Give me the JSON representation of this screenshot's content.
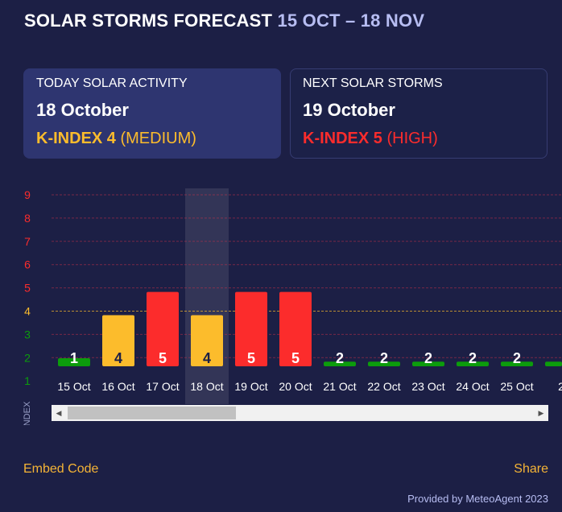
{
  "header": {
    "title": "SOLAR STORMS FORECAST",
    "range": "15 OCT – 18 NOV"
  },
  "today": {
    "label": "TODAY SOLAR ACTIVITY",
    "date": "18 October",
    "kindex": "K-INDEX 4",
    "level": "(MEDIUM)",
    "color": "#fcbc2c"
  },
  "next": {
    "label": "NEXT SOLAR STORMS",
    "date": "19 October",
    "kindex": "K-INDEX 5",
    "level": "(HIGH)",
    "color": "#fc2c2c"
  },
  "chart_data": {
    "type": "bar",
    "ylabel": "K-INDEX",
    "ylim": [
      1,
      9
    ],
    "yticks": [
      1,
      2,
      3,
      4,
      5,
      6,
      7,
      8,
      9
    ],
    "highlight": "18 Oct",
    "categories": [
      "15 Oct",
      "16 Oct",
      "17 Oct",
      "18 Oct",
      "19 Oct",
      "20 Oct",
      "21 Oct",
      "22 Oct",
      "23 Oct",
      "24 Oct",
      "25 Oct",
      "2"
    ],
    "values": [
      1,
      4,
      5,
      4,
      5,
      5,
      2,
      2,
      2,
      2,
      2,
      2
    ],
    "value_labels": [
      "1",
      "4",
      "5",
      "4",
      "5",
      "5",
      "2",
      "2",
      "2",
      "2",
      "2",
      ""
    ],
    "colors": {
      "low": "#0c9c0c",
      "medium": "#fcbc2c",
      "high": "#fc2c2c"
    }
  },
  "footer": {
    "embed": "Embed Code",
    "share": "Share",
    "credit": "Provided by MeteoAgent 2023"
  }
}
